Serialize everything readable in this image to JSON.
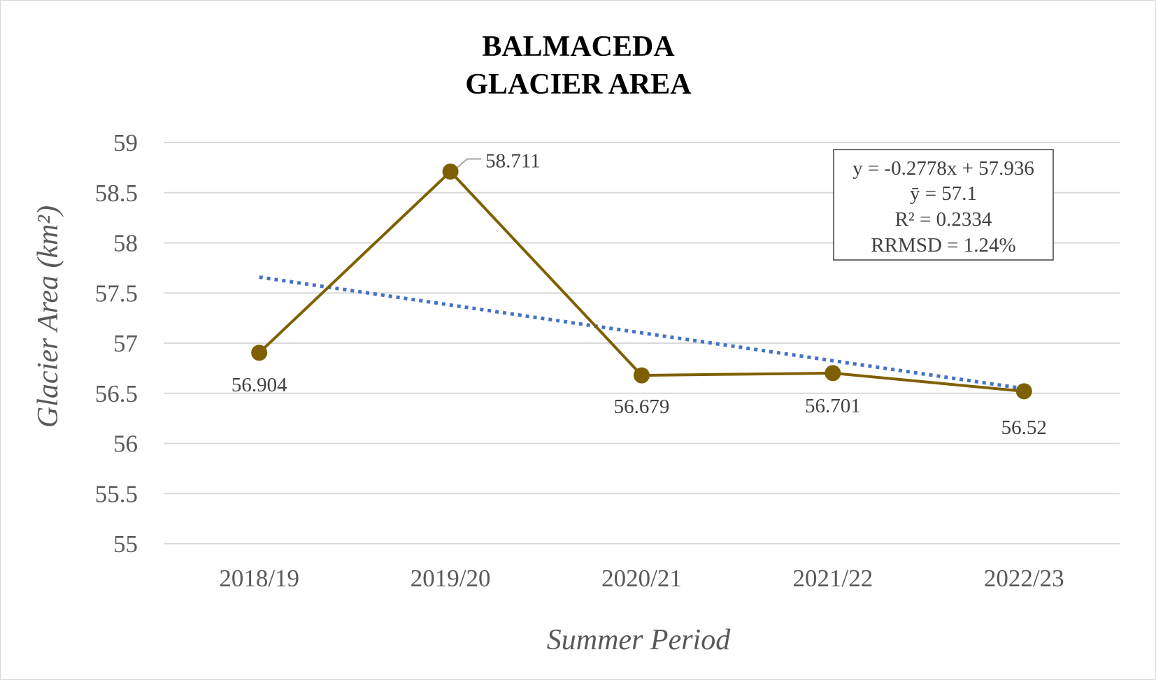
{
  "chart_data": {
    "type": "line",
    "title": [
      "BALMACEDA",
      "GLACIER AREA"
    ],
    "xlabel": "Summer Period",
    "ylabel": "Glacier Area (km²)",
    "categories": [
      "2018/19",
      "2019/20",
      "2020/21",
      "2021/22",
      "2022/23"
    ],
    "series": [
      {
        "values": [
          56.904,
          58.711,
          56.679,
          56.701,
          56.52
        ],
        "color": "#7f6000"
      }
    ],
    "data_labels": [
      "56.904",
      "58.711",
      "56.679",
      "56.701",
      "56.52"
    ],
    "trendline": {
      "type": "linear",
      "slope": -0.2778,
      "intercept": 57.936,
      "color": "#4472c4",
      "style": "dotted"
    },
    "ylim": [
      55,
      59
    ],
    "y_ticks": [
      "59",
      "58.5",
      "58",
      "57.5",
      "57",
      "56.5",
      "56",
      "55.5",
      "55"
    ],
    "grid": true,
    "stats_box": [
      "y = -0.2778x + 57.936",
      "ȳ = 57.1",
      "R² = 0.2334",
      "RRMSD = 1.24%"
    ]
  }
}
